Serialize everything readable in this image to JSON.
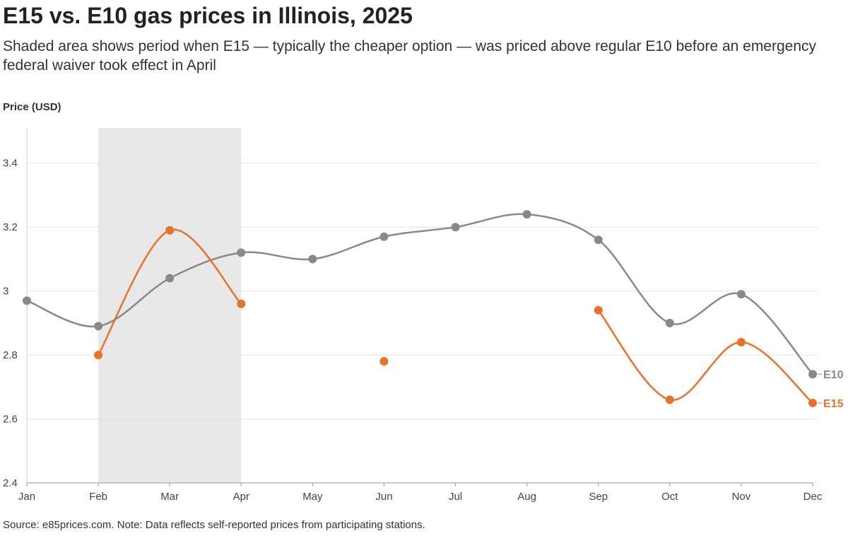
{
  "chart_data": {
    "type": "line",
    "title": "E15 vs. E10 gas prices in Illinois, 2025",
    "subtitle": "Shaded area shows period when E15 — typically the cheaper option — was priced above regular E10 before an emergency federal waiver took effect in April",
    "ylabel": "Price (USD)",
    "xlabel": "",
    "categories": [
      "Jan",
      "Feb",
      "Mar",
      "Apr",
      "May",
      "Jun",
      "Jul",
      "Aug",
      "Sep",
      "Oct",
      "Nov",
      "Dec"
    ],
    "ylim": [
      2.4,
      3.51
    ],
    "yticks": [
      2.4,
      2.6,
      2.8,
      3,
      3.2,
      3.4
    ],
    "ytick_labels": [
      "2.4",
      "2.6",
      "2.8",
      "3",
      "3.2",
      "3.4"
    ],
    "grid": true,
    "shaded_range": [
      "Feb",
      "Apr"
    ],
    "series": [
      {
        "name": "E10",
        "color": "#8a8a84",
        "values": [
          2.97,
          2.89,
          3.04,
          3.12,
          3.1,
          3.17,
          3.2,
          3.24,
          3.16,
          2.9,
          2.99,
          2.74
        ]
      },
      {
        "name": "E15",
        "color": "#e8722a",
        "values": [
          null,
          2.8,
          3.19,
          2.96,
          null,
          2.78,
          null,
          null,
          2.94,
          2.66,
          2.84,
          2.65
        ]
      }
    ],
    "legend_placement": "end-of-line labels, right"
  },
  "source": "Source: e85prices.com. Note: Data reflects self-reported prices from participating stations."
}
